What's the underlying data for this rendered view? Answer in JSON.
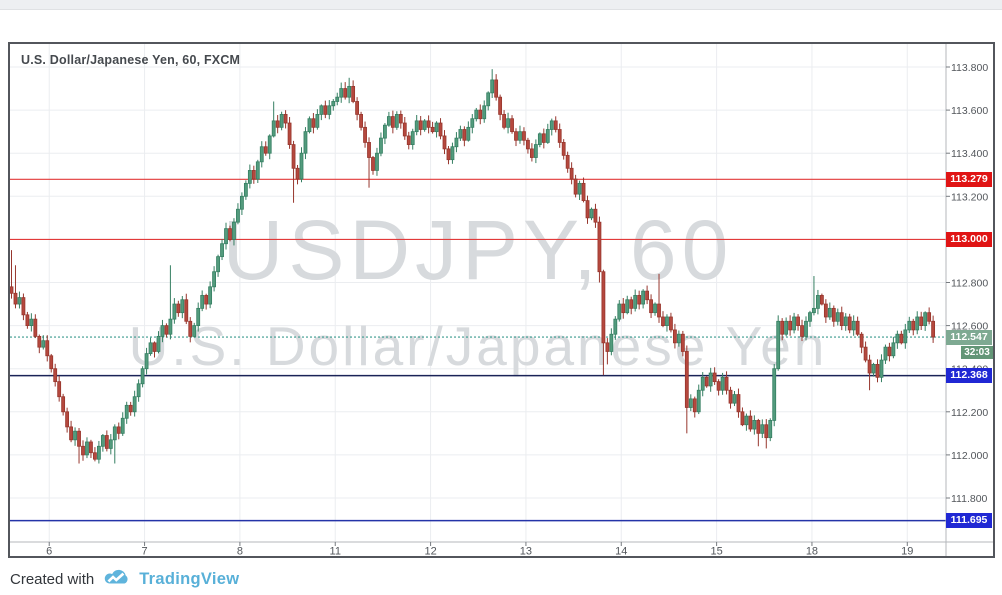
{
  "page": {
    "background": "#ffffff",
    "top_strip_color": "#edeff2"
  },
  "chart": {
    "title": "U.S. Dollar/Japanese Yen, 60, FXCM",
    "watermark": {
      "line1": "USDJPY, 60",
      "line2": "U.S. Dollar/Japanese Yen"
    },
    "last_price": "112.547",
    "countdown": "32:03",
    "price_axis_labels": [
      "113.800",
      "113.600",
      "113.400",
      "113.200",
      "112.800",
      "112.600",
      "112.400",
      "112.200",
      "112.000",
      "111.800"
    ],
    "time_axis_labels": [
      "6",
      "7",
      "8",
      "11",
      "12",
      "13",
      "14",
      "15",
      "18",
      "19"
    ],
    "badges": [
      {
        "text": "113.279",
        "price": 113.279,
        "bg": "#e01414",
        "kind": "alert-level"
      },
      {
        "text": "113.000",
        "price": 113.0,
        "bg": "#e01414",
        "kind": "alert-level"
      },
      {
        "text": "112.547",
        "price": 112.547,
        "bg": "#7ea992",
        "kind": "last-price",
        "countdown": "32:03",
        "countdown_bg": "#639677"
      },
      {
        "text": "112.368",
        "price": 112.368,
        "bg": "#2028d4",
        "kind": "level"
      },
      {
        "text": "111.695",
        "price": 111.695,
        "bg": "#2028d4",
        "kind": "level"
      }
    ]
  },
  "footer": {
    "created_with": "Created with",
    "brand": "TradingView"
  },
  "colors": {
    "up": "#539b7d",
    "up_border": "#357f62",
    "down": "#b5483e",
    "down_border": "#97362d",
    "grid": "#ebedf0",
    "red_line": "#e23a3a",
    "teal_line": "#3a9a8e",
    "navy_line_dark": "#1a2357",
    "navy_line": "#2433a8",
    "axis_text": "#52565b",
    "tick": "#777b80",
    "divider": "#b4b7bb",
    "watermark": "#d7dadd"
  },
  "chart_data": {
    "type": "candlestick",
    "symbol": "USDJPY",
    "interval": "60",
    "exchange": "FXCM",
    "title": "U.S. Dollar/Japanese Yen, 60, FXCM",
    "x_axis_days": [
      "6",
      "7",
      "8",
      "11",
      "12",
      "13",
      "14",
      "15",
      "18",
      "19"
    ],
    "candles_per_day": 24,
    "pre_day_candles": 10,
    "y_axis_ticks": [
      113.8,
      113.6,
      113.4,
      113.2,
      113.0,
      112.8,
      112.6,
      112.4,
      112.2,
      112.0,
      111.8
    ],
    "y_range": [
      111.6,
      113.92
    ],
    "grid": true,
    "first_open": 112.78,
    "closes": [
      112.75,
      112.7,
      112.73,
      112.65,
      112.6,
      112.63,
      112.55,
      112.5,
      112.53,
      112.46,
      112.4,
      112.34,
      112.27,
      112.2,
      112.13,
      112.07,
      112.11,
      112.04,
      112.0,
      112.06,
      112.01,
      111.98,
      112.04,
      112.09,
      112.03,
      112.07,
      112.13,
      112.1,
      112.17,
      112.23,
      112.2,
      112.27,
      112.33,
      112.4,
      112.47,
      112.52,
      112.48,
      112.55,
      112.6,
      112.56,
      112.63,
      112.7,
      112.66,
      112.72,
      112.62,
      112.55,
      112.6,
      112.68,
      112.74,
      112.7,
      112.78,
      112.85,
      112.92,
      112.98,
      113.05,
      113.0,
      113.08,
      113.14,
      113.2,
      113.26,
      113.32,
      113.28,
      113.36,
      113.43,
      113.4,
      113.48,
      113.55,
      113.52,
      113.58,
      113.54,
      113.44,
      113.33,
      113.28,
      113.4,
      113.5,
      113.56,
      113.52,
      113.58,
      113.62,
      113.58,
      113.62,
      113.64,
      113.66,
      113.7,
      113.66,
      113.71,
      113.64,
      113.58,
      113.52,
      113.45,
      113.38,
      113.32,
      113.4,
      113.47,
      113.53,
      113.57,
      113.52,
      113.58,
      113.54,
      113.48,
      113.44,
      113.5,
      113.55,
      113.51,
      113.55,
      113.52,
      113.5,
      113.54,
      113.48,
      113.42,
      113.37,
      113.43,
      113.47,
      113.51,
      113.46,
      113.52,
      113.56,
      113.6,
      113.56,
      113.62,
      113.68,
      113.74,
      113.66,
      113.58,
      113.52,
      113.56,
      113.5,
      113.46,
      113.5,
      113.46,
      113.42,
      113.38,
      113.44,
      113.49,
      113.45,
      113.51,
      113.55,
      113.51,
      113.45,
      113.39,
      113.33,
      113.28,
      113.21,
      113.26,
      113.18,
      113.1,
      113.14,
      113.08,
      112.85,
      112.52,
      112.48,
      112.56,
      112.63,
      112.7,
      112.66,
      112.72,
      112.68,
      112.74,
      112.7,
      112.76,
      112.72,
      112.66,
      112.7,
      112.64,
      112.6,
      112.64,
      112.58,
      112.52,
      112.56,
      112.48,
      112.22,
      112.26,
      112.2,
      112.3,
      112.36,
      112.32,
      112.38,
      112.34,
      112.3,
      112.36,
      112.3,
      112.24,
      112.28,
      112.2,
      112.14,
      112.18,
      112.12,
      112.16,
      112.1,
      112.14,
      112.08,
      112.16,
      112.4,
      112.62,
      112.56,
      112.62,
      112.58,
      112.64,
      112.6,
      112.55,
      112.62,
      112.66,
      112.68,
      112.74,
      112.7,
      112.64,
      112.68,
      112.62,
      112.66,
      112.6,
      112.64,
      112.58,
      112.62,
      112.56,
      112.5,
      112.44,
      112.38,
      112.42,
      112.36,
      112.44,
      112.5,
      112.46,
      112.52,
      112.56,
      112.52,
      112.58,
      112.62,
      112.58,
      112.64,
      112.6,
      112.66,
      112.62,
      112.547
    ],
    "wick_overrides": {
      "0": {
        "h": 112.95
      },
      "1": {
        "h": 112.88
      },
      "17": {
        "l": 111.96
      },
      "21": {
        "l": 111.97
      },
      "26": {
        "l": 111.96
      },
      "40": {
        "h": 112.88
      },
      "66": {
        "h": 113.64
      },
      "71": {
        "l": 113.17
      },
      "84": {
        "h": 113.73
      },
      "85": {
        "h": 113.75
      },
      "90": {
        "l": 113.24
      },
      "121": {
        "h": 113.79
      },
      "148": {
        "l": 112.8
      },
      "149": {
        "l": 112.37
      },
      "150": {
        "l": 112.42
      },
      "163": {
        "h": 112.84
      },
      "170": {
        "l": 112.1
      },
      "188": {
        "l": 112.04
      },
      "190": {
        "l": 112.03
      },
      "202": {
        "h": 112.83
      },
      "216": {
        "l": 112.3
      }
    },
    "price_lines": [
      {
        "price": 113.279,
        "style": "solid",
        "color_key": "red_line",
        "label": "113.279"
      },
      {
        "price": 113.0,
        "style": "solid",
        "color_key": "red_line",
        "label": "113.000"
      },
      {
        "price": 112.547,
        "style": "dashed",
        "color_key": "teal_line",
        "label": "112.547"
      },
      {
        "price": 112.368,
        "style": "solid",
        "color_key": "navy_line_dark",
        "label": "112.368"
      },
      {
        "price": 111.695,
        "style": "solid",
        "color_key": "navy_line",
        "label": "111.695"
      }
    ]
  }
}
